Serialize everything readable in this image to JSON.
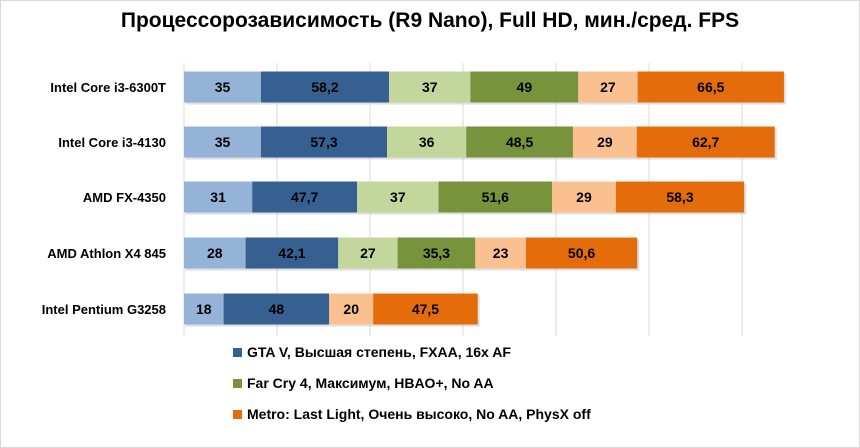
{
  "chart_data": {
    "type": "bar",
    "orientation": "horizontal",
    "stacked": true,
    "title": "Процессорозависимость (R9 Nano), Full HD, мин./сред. FPS",
    "categories": [
      "Intel Core i3-6300T",
      "Intel Core i3-4130",
      "AMD FX-4350",
      "AMD Athlon X4 845",
      "Intel Pentium G3258"
    ],
    "series": [
      {
        "color": "#95b3d7",
        "values": [
          35,
          35,
          31,
          28,
          18
        ]
      },
      {
        "name": "GTA V, Высшая степень, FXAA, 16x AF",
        "color": "#376092",
        "values": [
          58.2,
          57.3,
          47.7,
          42.1,
          48
        ]
      },
      {
        "color": "#c3d69b",
        "values": [
          37,
          36,
          37,
          27,
          null
        ]
      },
      {
        "name": "Far Cry 4, Максимум, HBAO+, No AA",
        "color": "#77933c",
        "values": [
          49,
          48.5,
          51.6,
          35.3,
          null
        ]
      },
      {
        "color": "#fac090",
        "values": [
          27,
          29,
          29,
          23,
          20
        ]
      },
      {
        "name": "Metro: Last Light, Очень высоко, No AA, PhysX off",
        "color": "#e46c0a",
        "values": [
          66.5,
          62.7,
          58.3,
          50.6,
          47.5
        ]
      }
    ],
    "xlim": [
      0,
      300
    ],
    "grid": true,
    "legend": "bottom"
  }
}
